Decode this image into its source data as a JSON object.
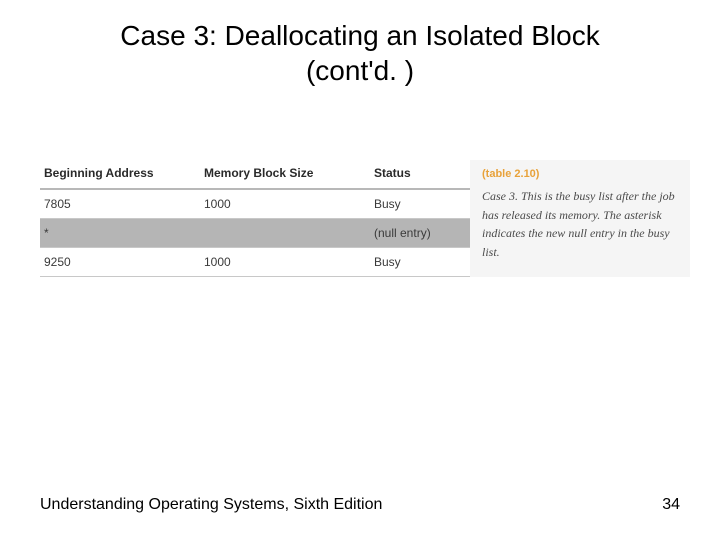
{
  "title_line1": "Case 3: Deallocating an Isolated Block",
  "title_line2": "(cont'd. )",
  "table": {
    "headers": {
      "address": "Beginning Address",
      "size": "Memory Block Size",
      "status": "Status"
    },
    "rows": [
      {
        "address": "7805",
        "size": "1000",
        "status": "Busy",
        "highlight": false
      },
      {
        "address": "*",
        "size": "",
        "status": "(null entry)",
        "highlight": true
      },
      {
        "address": "9250",
        "size": "1000",
        "status": "Busy",
        "highlight": false
      }
    ]
  },
  "caption": {
    "label": "(table 2.10)",
    "text": "Case 3. This is the busy list after the job has released its memory. The asterisk indicates the new null entry in the busy list."
  },
  "footer": {
    "book": "Understanding Operating Systems, Sixth Edition",
    "page": "34"
  },
  "colors": {
    "caption_label": "#e8a23a",
    "highlight_row": "#b5b5b5",
    "caption_bg": "#f5f5f5",
    "header_border": "#b8b8b8",
    "row_border": "#c8c8c8"
  },
  "typography": {
    "title_fontsize": 28,
    "table_fontsize": 12,
    "caption_fontsize": 12,
    "footer_fontsize": 16
  }
}
